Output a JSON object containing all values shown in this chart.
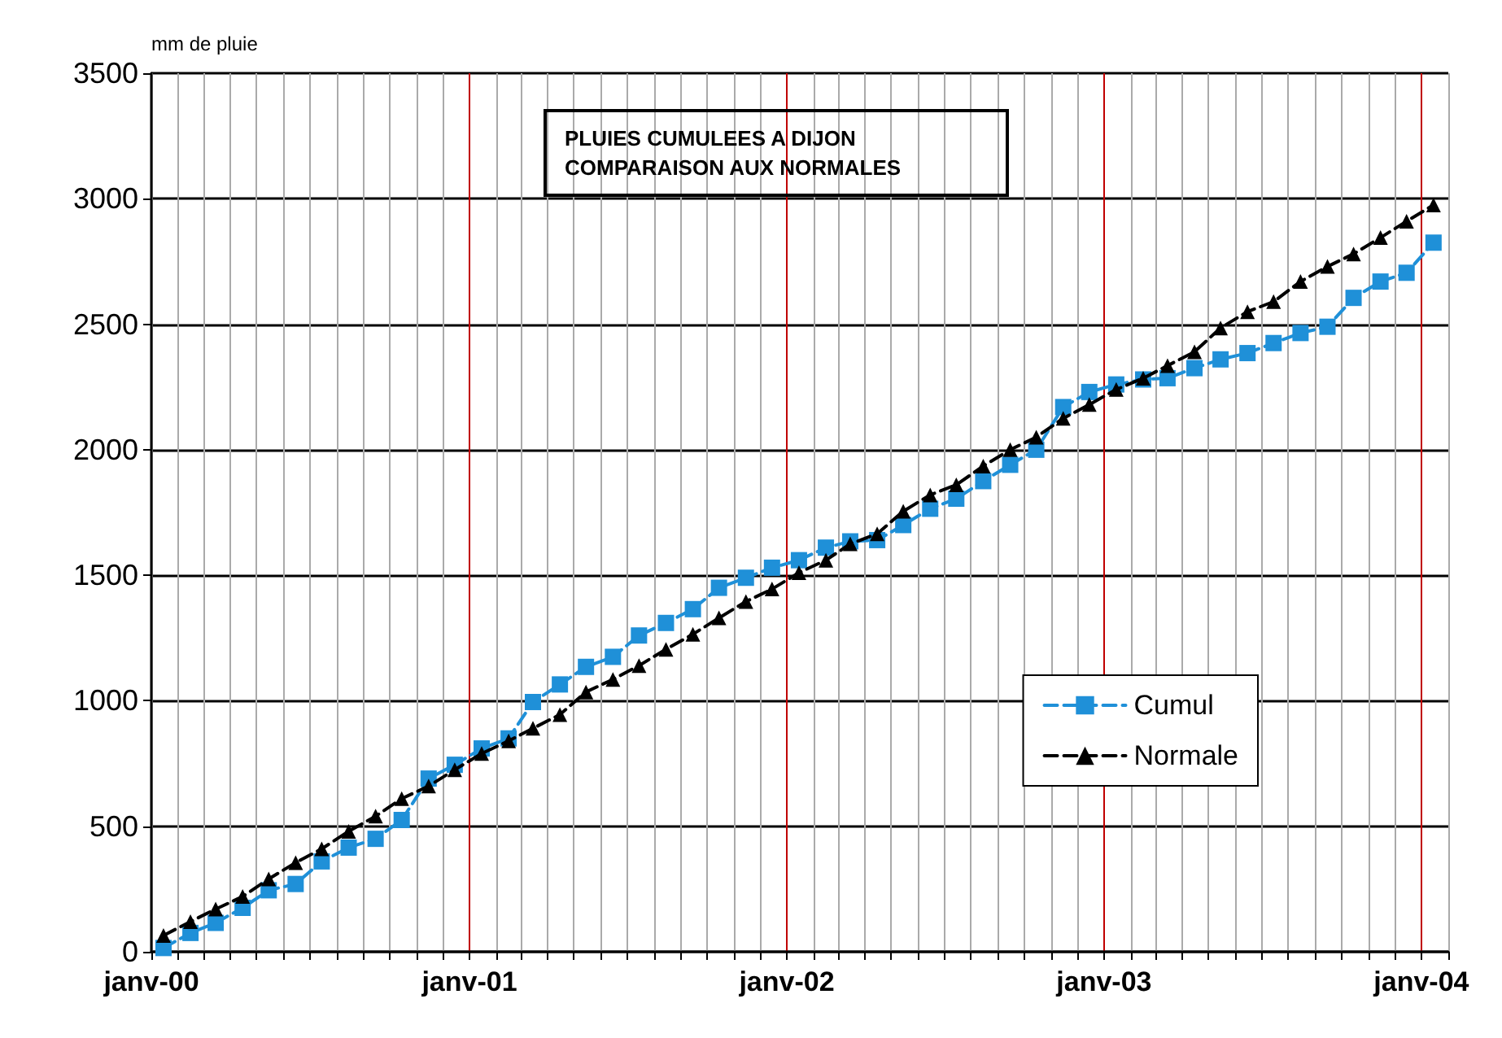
{
  "chart_data": {
    "type": "line",
    "title": "PLUIES CUMULEES A DIJON COMPARAISON AUX NORMALES",
    "ylabel": "mm de pluie",
    "x": [
      "2000-01-15",
      "2000-02-15",
      "2000-03-15",
      "2000-04-15",
      "2000-05-15",
      "2000-06-15",
      "2000-07-15",
      "2000-08-15",
      "2000-09-15",
      "2000-10-15",
      "2000-11-15",
      "2000-12-15",
      "2001-01-15",
      "2001-02-15",
      "2001-03-15",
      "2001-04-15",
      "2001-05-15",
      "2001-06-15",
      "2001-07-15",
      "2001-08-15",
      "2001-09-15",
      "2001-10-15",
      "2001-11-15",
      "2001-12-15",
      "2002-01-15",
      "2002-02-15",
      "2002-03-15",
      "2002-04-15",
      "2002-05-15",
      "2002-06-15",
      "2002-07-15",
      "2002-08-15",
      "2002-09-15",
      "2002-10-15",
      "2002-11-15",
      "2002-12-15",
      "2003-01-15",
      "2003-02-15",
      "2003-03-15",
      "2003-04-15",
      "2003-05-15",
      "2003-06-15",
      "2003-07-15",
      "2003-08-15",
      "2003-09-15",
      "2003-10-15",
      "2003-11-15",
      "2003-12-15",
      "2004-01-15"
    ],
    "series": [
      {
        "name": "Cumul",
        "color": "#1f90d8",
        "marker": "square",
        "line_style": "dashed",
        "values": [
          15,
          75,
          115,
          175,
          245,
          270,
          360,
          415,
          450,
          525,
          690,
          745,
          810,
          850,
          995,
          1065,
          1135,
          1175,
          1260,
          1310,
          1365,
          1450,
          1490,
          1530,
          1560,
          1610,
          1635,
          1640,
          1700,
          1765,
          1805,
          1875,
          1940,
          2000,
          2170,
          2230,
          2260,
          2280,
          2285,
          2325,
          2360,
          2385,
          2425,
          2465,
          2490,
          2605,
          2670,
          2705,
          2825
        ]
      },
      {
        "name": "Normale",
        "color": "#000000",
        "marker": "triangle",
        "line_style": "dashed",
        "values": [
          65,
          120,
          170,
          220,
          290,
          355,
          410,
          480,
          540,
          610,
          660,
          725,
          790,
          840,
          890,
          945,
          1035,
          1085,
          1140,
          1205,
          1265,
          1330,
          1395,
          1445,
          1510,
          1560,
          1625,
          1665,
          1755,
          1820,
          1860,
          1935,
          2000,
          2050,
          2125,
          2180,
          2240,
          2285,
          2335,
          2390,
          2485,
          2550,
          2590,
          2670,
          2730,
          2780,
          2845,
          2910,
          2975
        ]
      }
    ],
    "xlim": [
      "2000-01-01",
      "2004-02-01"
    ],
    "xticks": [
      {
        "value": "2000-01-01",
        "label": "janv-00"
      },
      {
        "value": "2000-02-01",
        "label": null
      },
      {
        "value": "2000-03-01",
        "label": null
      },
      {
        "value": "2000-04-01",
        "label": null
      },
      {
        "value": "2000-05-01",
        "label": null
      },
      {
        "value": "2000-06-01",
        "label": null
      },
      {
        "value": "2000-07-01",
        "label": null
      },
      {
        "value": "2000-08-01",
        "label": null
      },
      {
        "value": "2000-09-01",
        "label": null
      },
      {
        "value": "2000-10-01",
        "label": null
      },
      {
        "value": "2000-11-01",
        "label": null
      },
      {
        "value": "2000-12-01",
        "label": null
      },
      {
        "value": "2001-01-01",
        "label": "janv-01"
      },
      {
        "value": "2001-02-01",
        "label": null
      },
      {
        "value": "2001-03-01",
        "label": null
      },
      {
        "value": "2001-04-01",
        "label": null
      },
      {
        "value": "2001-05-01",
        "label": null
      },
      {
        "value": "2001-06-01",
        "label": null
      },
      {
        "value": "2001-07-01",
        "label": null
      },
      {
        "value": "2001-08-01",
        "label": null
      },
      {
        "value": "2001-09-01",
        "label": null
      },
      {
        "value": "2001-10-01",
        "label": null
      },
      {
        "value": "2001-11-01",
        "label": null
      },
      {
        "value": "2001-12-01",
        "label": null
      },
      {
        "value": "2002-01-01",
        "label": "janv-02"
      },
      {
        "value": "2002-02-01",
        "label": null
      },
      {
        "value": "2002-03-01",
        "label": null
      },
      {
        "value": "2002-04-01",
        "label": null
      },
      {
        "value": "2002-05-01",
        "label": null
      },
      {
        "value": "2002-06-01",
        "label": null
      },
      {
        "value": "2002-07-01",
        "label": null
      },
      {
        "value": "2002-08-01",
        "label": null
      },
      {
        "value": "2002-09-01",
        "label": null
      },
      {
        "value": "2002-10-01",
        "label": null
      },
      {
        "value": "2002-11-01",
        "label": null
      },
      {
        "value": "2002-12-01",
        "label": null
      },
      {
        "value": "2003-01-01",
        "label": "janv-03"
      },
      {
        "value": "2003-02-01",
        "label": null
      },
      {
        "value": "2003-03-01",
        "label": null
      },
      {
        "value": "2003-04-01",
        "label": null
      },
      {
        "value": "2003-05-01",
        "label": null
      },
      {
        "value": "2003-06-01",
        "label": null
      },
      {
        "value": "2003-07-01",
        "label": null
      },
      {
        "value": "2003-08-01",
        "label": null
      },
      {
        "value": "2003-09-01",
        "label": null
      },
      {
        "value": "2003-10-01",
        "label": null
      },
      {
        "value": "2003-11-01",
        "label": null
      },
      {
        "value": "2003-12-01",
        "label": null
      },
      {
        "value": "2004-01-01",
        "label": "janv-04"
      },
      {
        "value": "2004-02-01",
        "label": null
      }
    ],
    "ylim": [
      0,
      3500
    ],
    "yticks": [
      0,
      500,
      1000,
      1500,
      2000,
      2500,
      3000,
      3500
    ],
    "grid": true,
    "legend": "right"
  }
}
